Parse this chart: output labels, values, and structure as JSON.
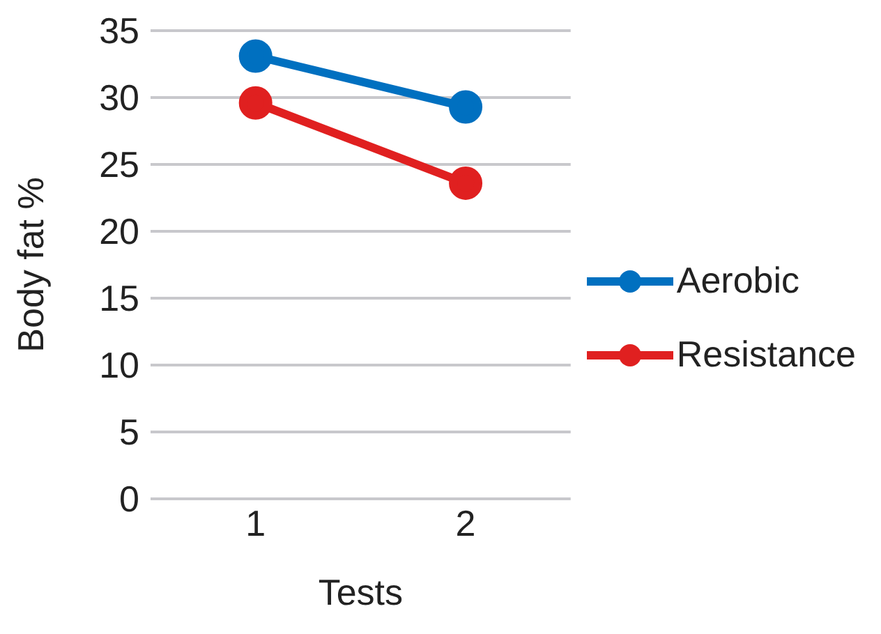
{
  "chart_data": {
    "type": "line",
    "xlabel": "Tests",
    "ylabel": "Body fat %",
    "categories": [
      "1",
      "2"
    ],
    "series": [
      {
        "name": "Aerobic",
        "color": "#0070c0",
        "values": [
          33.1,
          29.3
        ]
      },
      {
        "name": "Resistance",
        "color": "#e02020",
        "values": [
          29.6,
          23.6
        ]
      }
    ],
    "ylim": [
      0,
      35
    ],
    "yticks": [
      0,
      5,
      10,
      15,
      20,
      25,
      30,
      35
    ],
    "grid": "y",
    "legend": "right",
    "marker": "circle",
    "line_style": "solid"
  }
}
